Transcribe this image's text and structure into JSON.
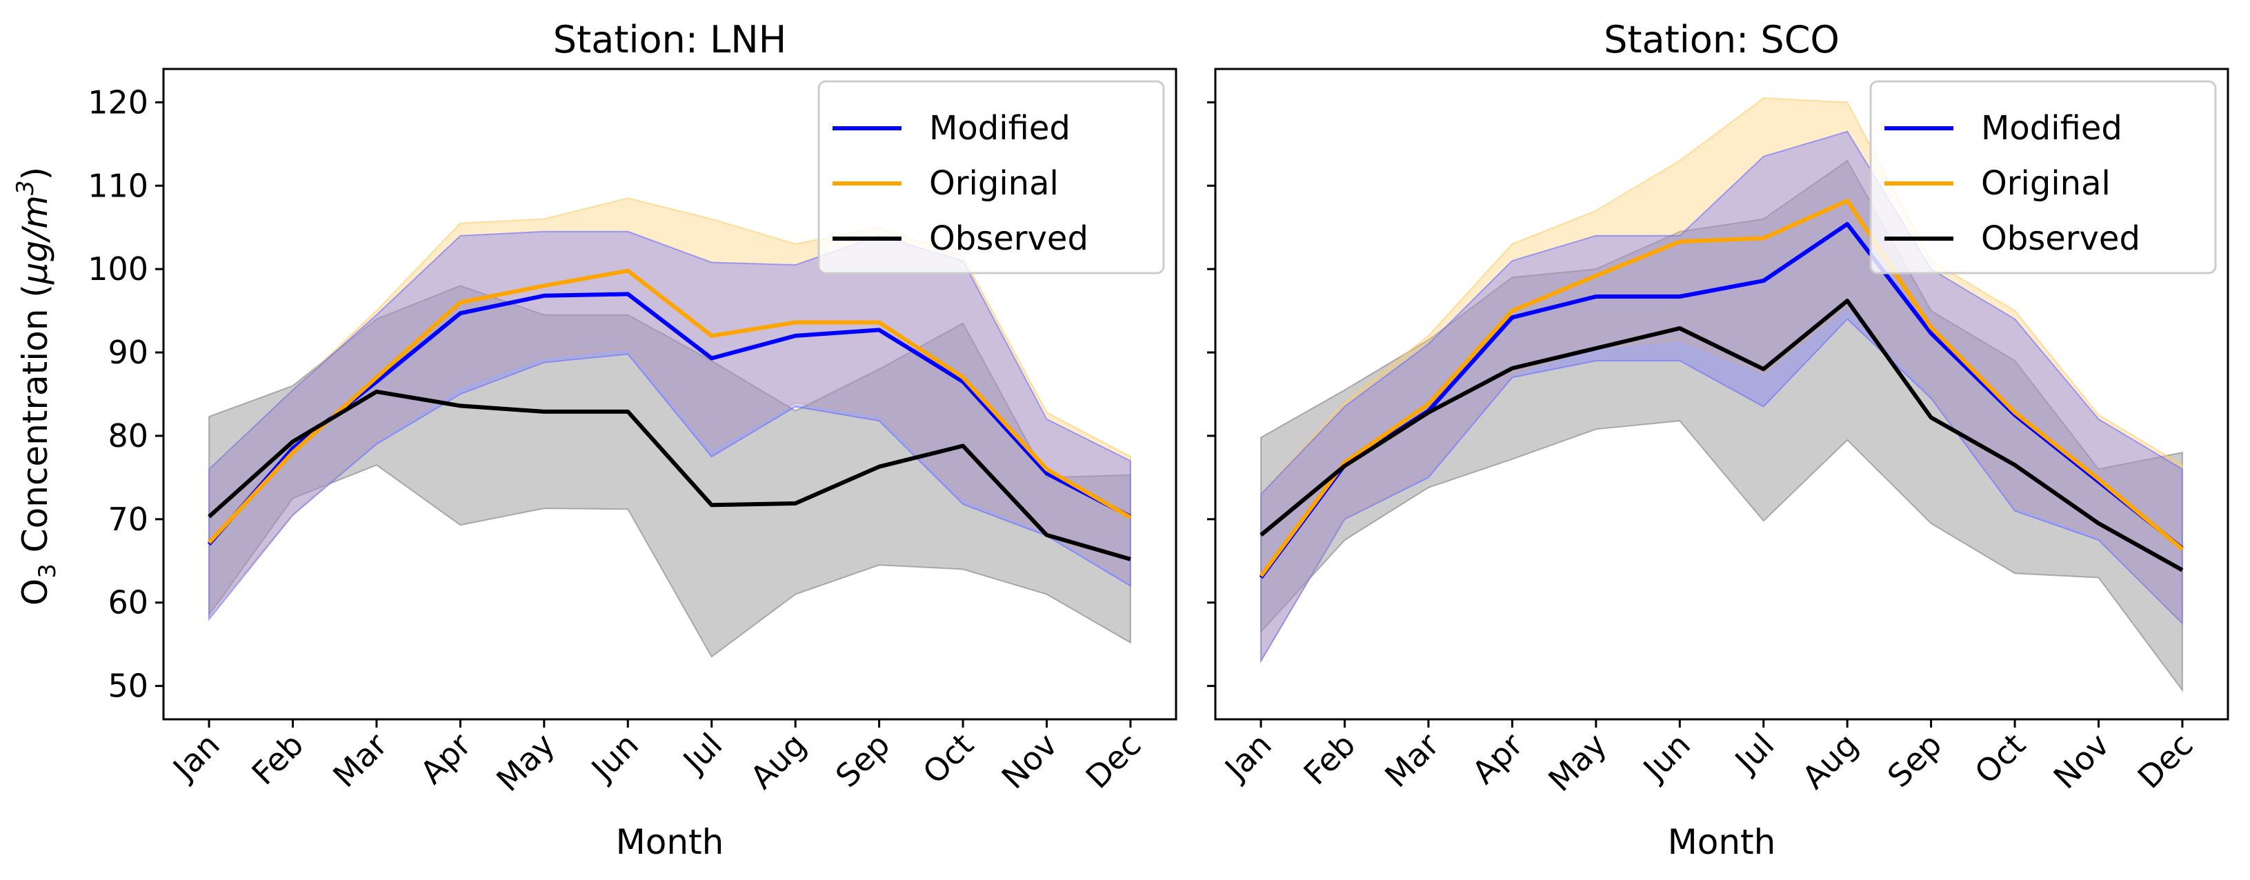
{
  "chart_data": [
    {
      "type": "line",
      "title": "Station: LNH",
      "xlabel": "Month",
      "ylabel": "O3 Concentration (μg/m3)",
      "ylabel_parts": {
        "base": "O",
        "sub": "3",
        "mid": " Concentration (",
        "mu": "μg/m",
        "sup": "3",
        "end": ")"
      },
      "ylim": [
        46,
        124
      ],
      "yticks": [
        50,
        60,
        70,
        80,
        90,
        100,
        110,
        120
      ],
      "categories": [
        "Jan",
        "Feb",
        "Mar",
        "Apr",
        "May",
        "Jun",
        "Jul",
        "Aug",
        "Sep",
        "Oct",
        "Nov",
        "Dec"
      ],
      "legend_position": "top-right",
      "series": [
        {
          "name": "Modified",
          "color": "#0000ff",
          "values": [
            67.0,
            78.5,
            86.5,
            94.7,
            96.8,
            97.0,
            89.3,
            92.0,
            92.7,
            86.5,
            75.5,
            70.3
          ],
          "lower": [
            58.0,
            70.5,
            79.0,
            85.0,
            88.8,
            89.8,
            77.5,
            83.5,
            81.8,
            71.8,
            68.0,
            62.0
          ],
          "upper": [
            76.0,
            85.5,
            94.5,
            104.0,
            104.5,
            104.5,
            100.8,
            100.5,
            104.0,
            101.0,
            82.0,
            77.0
          ]
        },
        {
          "name": "Original",
          "color": "#ffa500",
          "values": [
            67.2,
            78.0,
            87.0,
            96.0,
            98.0,
            99.8,
            92.0,
            93.6,
            93.6,
            87.0,
            76.0,
            70.2
          ],
          "lower": [
            58.5,
            70.5,
            79.5,
            86.0,
            89.5,
            90.5,
            78.5,
            84.0,
            82.5,
            72.5,
            68.5,
            62.5
          ],
          "upper": [
            76.0,
            85.5,
            95.0,
            105.5,
            106.0,
            108.5,
            106.0,
            103.0,
            105.0,
            101.5,
            82.8,
            77.5
          ]
        },
        {
          "name": "Observed",
          "color": "#000000",
          "values": [
            70.3,
            79.3,
            85.3,
            83.6,
            82.9,
            82.9,
            71.7,
            71.9,
            76.3,
            78.8,
            68.1,
            65.2
          ],
          "lower": [
            58.5,
            72.5,
            76.5,
            69.3,
            71.3,
            71.2,
            53.5,
            61.0,
            64.5,
            64.0,
            61.0,
            55.2
          ],
          "upper": [
            82.3,
            86.0,
            94.0,
            98.0,
            94.5,
            94.5,
            89.0,
            83.0,
            88.0,
            93.5,
            75.0,
            75.3
          ]
        }
      ]
    },
    {
      "type": "line",
      "title": "Station: SCO",
      "xlabel": "Month",
      "ylim": [
        46,
        124
      ],
      "categories": [
        "Jan",
        "Feb",
        "Mar",
        "Apr",
        "May",
        "Jun",
        "Jul",
        "Aug",
        "Sep",
        "Oct",
        "Nov",
        "Dec"
      ],
      "legend_position": "top-right",
      "series": [
        {
          "name": "Modified",
          "color": "#0000ff",
          "values": [
            63.0,
            76.5,
            83.0,
            94.2,
            96.7,
            96.7,
            98.6,
            105.4,
            92.3,
            82.5,
            74.5,
            66.5
          ],
          "lower": [
            53.0,
            70.0,
            75.0,
            87.0,
            89.0,
            89.0,
            83.5,
            94.0,
            84.5,
            71.0,
            67.5,
            57.5
          ],
          "upper": [
            73.0,
            83.5,
            91.0,
            101.0,
            104.0,
            104.0,
            113.5,
            116.5,
            100.0,
            94.0,
            82.0,
            76.0
          ]
        },
        {
          "name": "Original",
          "color": "#ffa500",
          "values": [
            63.2,
            76.8,
            83.8,
            95.0,
            99.2,
            103.3,
            103.7,
            108.2,
            93.0,
            82.8,
            74.8,
            66.4
          ],
          "lower": [
            53.0,
            70.0,
            75.5,
            87.5,
            90.5,
            91.5,
            87.5,
            95.5,
            85.0,
            71.5,
            68.0,
            57.5
          ],
          "upper": [
            73.0,
            84.0,
            92.0,
            103.0,
            107.0,
            113.0,
            120.5,
            120.0,
            101.0,
            95.0,
            82.5,
            76.5
          ]
        },
        {
          "name": "Observed",
          "color": "#000000",
          "values": [
            68.1,
            76.4,
            82.8,
            88.1,
            90.5,
            92.9,
            88.0,
            96.2,
            82.2,
            76.5,
            69.5,
            63.9
          ],
          "lower": [
            56.5,
            67.5,
            73.8,
            77.2,
            80.8,
            81.8,
            69.8,
            79.5,
            69.5,
            63.5,
            63.0,
            49.5
          ],
          "upper": [
            79.8,
            85.5,
            91.5,
            99.0,
            100.0,
            104.5,
            106.0,
            113.0,
            95.0,
            89.0,
            76.0,
            78.0
          ]
        }
      ]
    }
  ]
}
